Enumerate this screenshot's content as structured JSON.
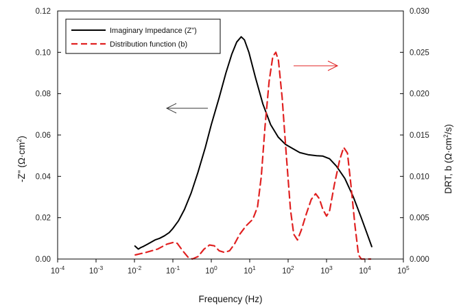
{
  "chart_data": {
    "type": "line",
    "xlabel": "Frequency (Hz)",
    "ylabel_left": "-Z\" (Ω·cm",
    "ylabel_left_sup": "2",
    "ylabel_left_close": ")",
    "ylabel_right": "DRT, b (Ω·cm",
    "ylabel_right_sup": "2",
    "ylabel_right_close": "/s)",
    "x_scale": "log",
    "xlim": [
      0.0001,
      100000
    ],
    "x_ticks": [
      {
        "value": 0.0001,
        "base": "10",
        "exp": "-4"
      },
      {
        "value": 0.001,
        "base": "10",
        "exp": "-3"
      },
      {
        "value": 0.01,
        "base": "10",
        "exp": "-2"
      },
      {
        "value": 0.1,
        "base": "10",
        "exp": "-1"
      },
      {
        "value": 1,
        "base": "10",
        "exp": "0"
      },
      {
        "value": 10,
        "base": "10",
        "exp": "1"
      },
      {
        "value": 100,
        "base": "10",
        "exp": "2"
      },
      {
        "value": 1000,
        "base": "10",
        "exp": "3"
      },
      {
        "value": 10000,
        "base": "10",
        "exp": "4"
      },
      {
        "value": 100000,
        "base": "10",
        "exp": "5"
      }
    ],
    "ylim_left": [
      0,
      0.12
    ],
    "y_ticks_left": [
      "0.00",
      "0.02",
      "0.04",
      "0.06",
      "0.08",
      "0.10",
      "0.12"
    ],
    "ylim_right": [
      0,
      0.03
    ],
    "y_ticks_right": [
      "0.000",
      "0.005",
      "0.010",
      "0.015",
      "0.020",
      "0.025",
      "0.030"
    ],
    "grid": false,
    "legend_position": "top-left",
    "series": [
      {
        "name": "Imaginary Impedance (Z\")",
        "axis": "left",
        "color": "#000000",
        "style": "solid",
        "points": [
          [
            0.0103,
            0.0063
          ],
          [
            0.0126,
            0.0048
          ],
          [
            0.0145,
            0.0055
          ],
          [
            0.0175,
            0.0062
          ],
          [
            0.022,
            0.0072
          ],
          [
            0.028,
            0.0083
          ],
          [
            0.035,
            0.0093
          ],
          [
            0.045,
            0.01
          ],
          [
            0.06,
            0.0112
          ],
          [
            0.08,
            0.0128
          ],
          [
            0.1,
            0.0148
          ],
          [
            0.14,
            0.0185
          ],
          [
            0.2,
            0.024
          ],
          [
            0.3,
            0.032
          ],
          [
            0.45,
            0.042
          ],
          [
            0.7,
            0.054
          ],
          [
            1.0,
            0.065
          ],
          [
            1.6,
            0.078
          ],
          [
            2.4,
            0.09
          ],
          [
            3.4,
            0.099
          ],
          [
            4.6,
            0.105
          ],
          [
            6.0,
            0.1075
          ],
          [
            7.3,
            0.106
          ],
          [
            9.5,
            0.1
          ],
          [
            14,
            0.088
          ],
          [
            22,
            0.075
          ],
          [
            35,
            0.065
          ],
          [
            55,
            0.059
          ],
          [
            85,
            0.0555
          ],
          [
            130,
            0.0535
          ],
          [
            200,
            0.0515
          ],
          [
            330,
            0.0505
          ],
          [
            550,
            0.05
          ],
          [
            800,
            0.0498
          ],
          [
            1200,
            0.0485
          ],
          [
            1800,
            0.045
          ],
          [
            3000,
            0.039
          ],
          [
            5000,
            0.03
          ],
          [
            8000,
            0.02
          ],
          [
            11000,
            0.013
          ],
          [
            15000,
            0.006
          ]
        ]
      },
      {
        "name": "Distribution function (b)",
        "axis": "right",
        "color": "#e02020",
        "style": "dashed",
        "points": [
          [
            0.0105,
            0.0005
          ],
          [
            0.02,
            0.0008
          ],
          [
            0.04,
            0.0012
          ],
          [
            0.07,
            0.0018
          ],
          [
            0.1,
            0.002
          ],
          [
            0.13,
            0.0019
          ],
          [
            0.18,
            0.001
          ],
          [
            0.25,
            0.0002
          ],
          [
            0.32,
            0.0
          ],
          [
            0.45,
            0.0003
          ],
          [
            0.65,
            0.0012
          ],
          [
            0.9,
            0.0017
          ],
          [
            1.2,
            0.0016
          ],
          [
            1.6,
            0.001
          ],
          [
            2.2,
            0.0008
          ],
          [
            3.0,
            0.001
          ],
          [
            4.0,
            0.0018
          ],
          [
            5.5,
            0.003
          ],
          [
            8.0,
            0.004
          ],
          [
            12,
            0.0048
          ],
          [
            16,
            0.0063
          ],
          [
            20,
            0.01
          ],
          [
            25,
            0.016
          ],
          [
            32,
            0.0215
          ],
          [
            40,
            0.0245
          ],
          [
            48,
            0.025
          ],
          [
            56,
            0.024
          ],
          [
            70,
            0.0195
          ],
          [
            90,
            0.0125
          ],
          [
            115,
            0.006
          ],
          [
            140,
            0.003
          ],
          [
            175,
            0.0023
          ],
          [
            220,
            0.0035
          ],
          [
            300,
            0.0055
          ],
          [
            400,
            0.0072
          ],
          [
            520,
            0.0079
          ],
          [
            650,
            0.0073
          ],
          [
            800,
            0.006
          ],
          [
            1000,
            0.0052
          ],
          [
            1200,
            0.0058
          ],
          [
            1600,
            0.009
          ],
          [
            2200,
            0.012
          ],
          [
            2800,
            0.0135
          ],
          [
            3500,
            0.0128
          ],
          [
            4300,
            0.009
          ],
          [
            5500,
            0.004
          ],
          [
            6800,
            0.0005
          ],
          [
            8000,
            0.0
          ],
          [
            10000,
            0.0
          ],
          [
            14000,
            0.0
          ]
        ]
      }
    ]
  }
}
